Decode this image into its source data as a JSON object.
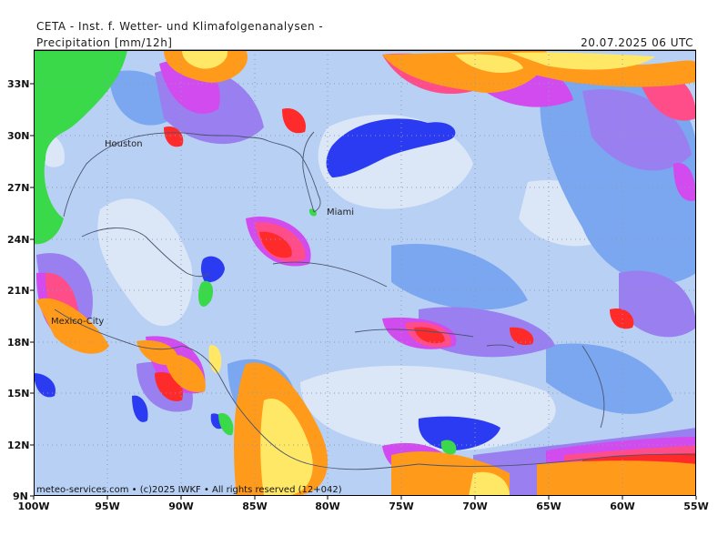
{
  "header": {
    "title": "CETA - Inst. f. Wetter- und Klimafolgenanalysen -",
    "variable": "Precipitation [mm/12h]",
    "valid_time": "20.07.2025 06 UTC"
  },
  "map": {
    "lat_labels": [
      "33N",
      "30N",
      "27N",
      "24N",
      "21N",
      "18N",
      "15N",
      "12N",
      "9N"
    ],
    "lon_labels": [
      "100W",
      "95W",
      "90W",
      "85W",
      "80W",
      "75W",
      "70W",
      "65W",
      "60W",
      "55W"
    ],
    "cities": [
      {
        "name": "Houston"
      },
      {
        "name": "Miami"
      },
      {
        "name": "Mexico-City"
      }
    ],
    "footer": "meteo-services.com • (c)2025 IWKF • All rights reserved (12+042)",
    "colors": {
      "base": "#b8d0f4",
      "light": "#dbe7f7",
      "medium": "#7aa7f0",
      "violet": "#9a7ff0",
      "magenta": "#d14bef",
      "pink": "#ff4d8a",
      "red": "#ff2a2a",
      "orange": "#ff9a1a",
      "yellow": "#ffe866",
      "blue": "#2a3bf2",
      "green": "#39d94a"
    }
  }
}
